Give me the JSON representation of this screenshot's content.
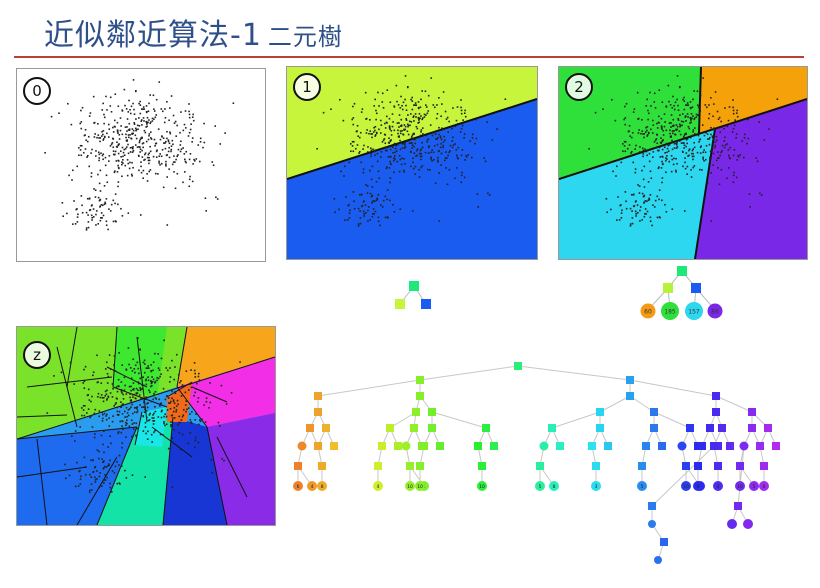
{
  "slide": {
    "title_main": "近似鄰近算法-1",
    "title_sub": "二元樹"
  },
  "panels": [
    {
      "badge": "0",
      "regions": []
    },
    {
      "badge": "1",
      "regions": [
        "#c6f53c",
        "#1a5cf0"
      ]
    },
    {
      "badge": "2",
      "regions": [
        "#2fe03a",
        "#f5a20a",
        "#2cd7ef",
        "#7a28e8"
      ]
    },
    {
      "badge": "z",
      "regions": [
        "#7be22a",
        "#f7a51b",
        "#f22ee6",
        "#8a2be8",
        "#1736d4",
        "#14e3a8",
        "#2a9df0",
        "#1e6bf0"
      ]
    }
  ],
  "tree2": {
    "root_color": "#1ee87a",
    "children_colors": [
      "#b6f23a",
      "#1a5cf0"
    ],
    "leaves": [
      {
        "label": "60",
        "color": "#f59a12"
      },
      {
        "label": "185",
        "color": "#2fe03a"
      },
      {
        "label": "157",
        "color": "#2cd7ef"
      },
      {
        "label": "86",
        "color": "#7a28e8"
      }
    ]
  },
  "tree1": {
    "root_color": "#1ee87a",
    "children_colors": [
      "#c6f53c",
      "#1a5cf0"
    ]
  },
  "big_tree": {
    "leaf_labels": [
      "6",
      "4",
      "8",
      "4",
      "10",
      "5",
      "10",
      "10",
      "5",
      "8",
      "3",
      "5",
      "10",
      "5",
      "6",
      "4",
      "10",
      "5",
      "6",
      "8",
      "4",
      "6",
      "3",
      "5",
      "7",
      "10",
      "6",
      "10",
      "6",
      "4",
      "3",
      "8",
      "7",
      "9",
      "6",
      "4",
      "10",
      "10",
      "5",
      "8",
      "9",
      "6",
      "4",
      "5",
      "10"
    ]
  }
}
